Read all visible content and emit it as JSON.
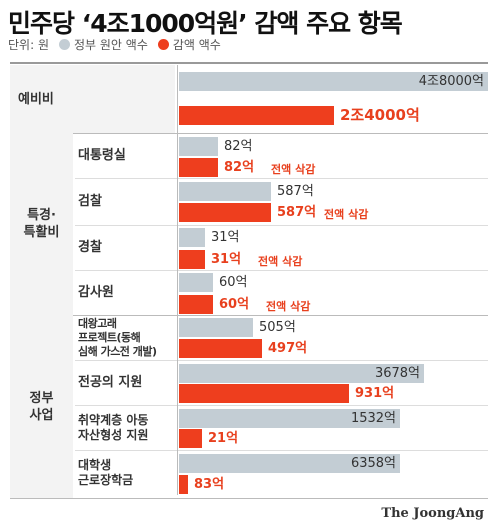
{
  "title": "민주당 ‘4조1000억원’ 감액 주요 항목",
  "legend": {
    "unit": "단위: 원",
    "items": [
      {
        "label": "정부 원안 액수",
        "color": "#c3cdd4"
      },
      {
        "label": "감액 액수",
        "color": "#ee3e1e"
      }
    ]
  },
  "credit": "The JoongAng",
  "chart_data": {
    "type": "bar",
    "orientation": "horizontal",
    "unit": "억원",
    "series": [
      {
        "name": "정부 원안 액수",
        "color": "#c3cdd4"
      },
      {
        "name": "감액 액수",
        "color": "#ee3e1e"
      }
    ],
    "groups": [
      {
        "label": "",
        "items": [
          {
            "label": "예비비",
            "gov": 48000,
            "gov_label": "4조8000억",
            "cut": 24000,
            "cut_label": "2조4000억",
            "note": ""
          }
        ]
      },
      {
        "label": "특경·\n특활비",
        "items": [
          {
            "label": "대통령실",
            "gov": 82,
            "gov_label": "82억",
            "cut": 82,
            "cut_label": "82억",
            "note": "전액 삭감"
          },
          {
            "label": "검찰",
            "gov": 587,
            "gov_label": "587억",
            "cut": 587,
            "cut_label": "587억",
            "note": "전액 삭감"
          },
          {
            "label": "경찰",
            "gov": 31,
            "gov_label": "31억",
            "cut": 31,
            "cut_label": "31억",
            "note": "전액 삭감"
          },
          {
            "label": "감사원",
            "gov": 60,
            "gov_label": "60억",
            "cut": 60,
            "cut_label": "60억",
            "note": "전액 삭감"
          }
        ]
      },
      {
        "label": "정부\n사업",
        "items": [
          {
            "label": "대왕고래\n프로젝트(동해\n심해 가스전 개발)",
            "gov": 505,
            "gov_label": "505억",
            "cut": 497,
            "cut_label": "497억",
            "note": ""
          },
          {
            "label": "전공의 지원",
            "gov": 3678,
            "gov_label": "3678억",
            "cut": 931,
            "cut_label": "931억",
            "note": ""
          },
          {
            "label": "취약계층 아동\n자산형성 지원",
            "gov": 1532,
            "gov_label": "1532억",
            "cut": 21,
            "cut_label": "21억",
            "note": ""
          },
          {
            "label": "대학생\n근로장학금",
            "gov": 6358,
            "gov_label": "6358억",
            "cut": 83,
            "cut_label": "83억",
            "note": ""
          }
        ]
      }
    ]
  }
}
